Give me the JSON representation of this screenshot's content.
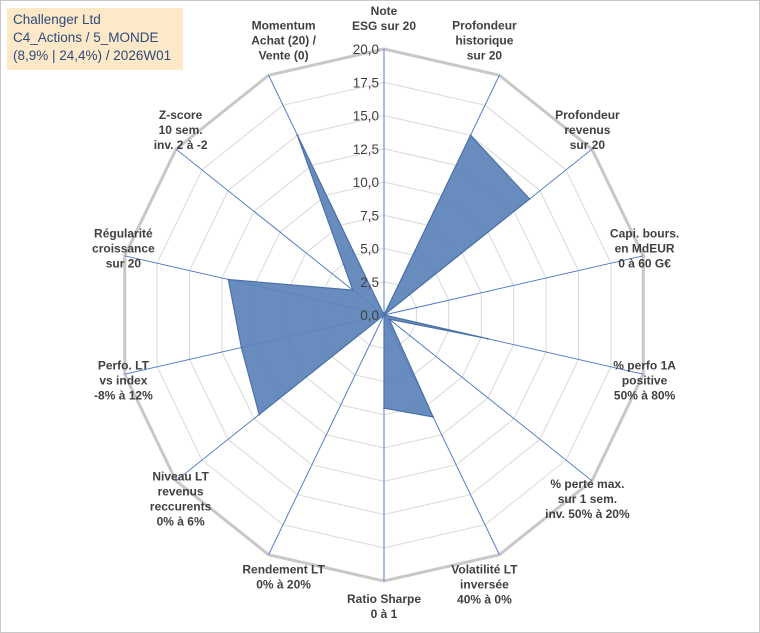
{
  "title_box": {
    "line1": "Challenger Ltd",
    "line2": "C4_Actions / 5_MONDE",
    "line3": "(8,9% | 24,4%) / 2026W01"
  },
  "colors": {
    "fill": "#5b82b8",
    "stroke": "#4a72a8",
    "grid": "#d9d9d9",
    "outer_grid": "#c8c8c8",
    "spoke": "#4472c4",
    "title_bg": "#fde9c7"
  },
  "chart_data": {
    "type": "radar",
    "rmax": 20,
    "ticks": [
      "0,0",
      "2,5",
      "5,0",
      "7,5",
      "10,0",
      "12,5",
      "15,0",
      "17,5",
      "20,0"
    ],
    "tick_values": [
      0,
      2.5,
      5,
      7.5,
      10,
      12.5,
      15,
      17.5,
      20
    ],
    "categories": [
      [
        "Note",
        "ESG sur 20"
      ],
      [
        "Profondeur",
        "historique",
        "sur 20"
      ],
      [
        "Profondeur",
        "revenus",
        "sur 20"
      ],
      [
        "Capi. bours.",
        "en MdEUR",
        "0 à 60 G€"
      ],
      [
        "% perfo 1A",
        "positive",
        "50% à 80%"
      ],
      [
        "% perte max.",
        "sur 1 sem.",
        "inv. 50% à 20%"
      ],
      [
        "Volatilité LT",
        "inversée",
        "40% à 0%"
      ],
      [
        "Ratio Sharpe",
        "0 à 1"
      ],
      [
        "Rendement LT",
        "0% à 20%"
      ],
      [
        "Niveau LT",
        "revenus",
        "reccurents",
        "0% à 6%"
      ],
      [
        "Perfo. LT",
        "vs index",
        "-8% à 12%"
      ],
      [
        "Régularité",
        "croissance",
        "sur 20"
      ],
      [
        "Z-score",
        "10 sem.",
        "inv. 2 à -2"
      ],
      [
        "Momentum",
        "Achat (20) /",
        "Vente (0)"
      ]
    ],
    "values": [
      0,
      15,
      14,
      0,
      8,
      0.5,
      8.5,
      7,
      0,
      12,
      11,
      12,
      3,
      15
    ],
    "grid": true,
    "legend": "none"
  }
}
